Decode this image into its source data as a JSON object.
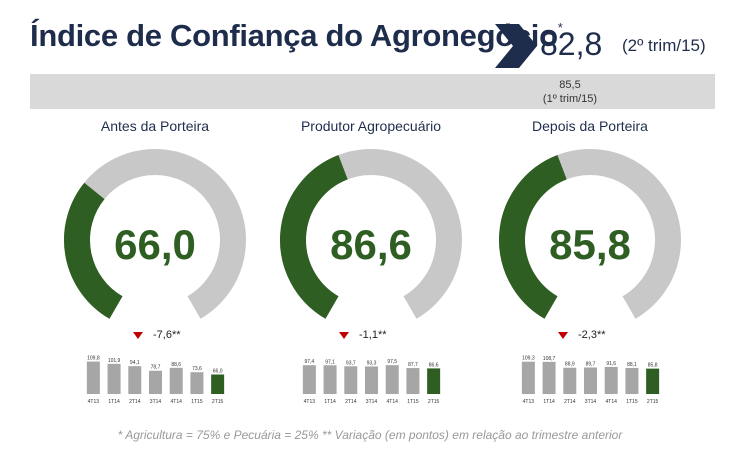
{
  "header": {
    "title": "Índice de Confiança do Agronegócio",
    "title_mark": "*",
    "current_value": "82,8",
    "current_period": "(2º trim/15)",
    "previous_value": "85,5",
    "previous_period": "(1º trim/15)"
  },
  "colors": {
    "title": "#1f2d4d",
    "accent_green": "#2e5e22",
    "gauge_grey": "#c8c8c8",
    "down_red": "#c00000",
    "band": "#d9d9d9"
  },
  "panels": [
    {
      "title": "Antes da Porteira",
      "value": "66,0",
      "delta": "-7,6**",
      "delta_icon": "down-triangle-icon",
      "gauge_fraction": 0.33,
      "chart_data": {
        "type": "bar",
        "categories": [
          "4T13",
          "1T14",
          "2T14",
          "3T14",
          "4T14",
          "1T15",
          "2T15"
        ],
        "values": [
          109.8,
          101.9,
          94.1,
          78.7,
          88.6,
          73.6,
          66.0
        ],
        "labels": [
          "109,8",
          "101,9",
          "94,1",
          "78,7",
          "88,6",
          "73,6",
          "66,0"
        ]
      }
    },
    {
      "title": "Produtor Agropecuário",
      "value": "86,6",
      "delta": "-1,1**",
      "delta_icon": "down-triangle-icon",
      "gauge_fraction": 0.43,
      "chart_data": {
        "type": "bar",
        "categories": [
          "4T13",
          "1T14",
          "2T14",
          "3T14",
          "4T14",
          "1T15",
          "2T15"
        ],
        "values": [
          97.4,
          97.1,
          93.7,
          93.3,
          97.5,
          87.7,
          86.6
        ],
        "labels": [
          "97,4",
          "97,1",
          "93,7",
          "93,3",
          "97,5",
          "87,7",
          "86,6"
        ]
      }
    },
    {
      "title": "Depois da Porteira",
      "value": "85,8",
      "delta": "-2,3**",
      "delta_icon": "down-triangle-icon",
      "gauge_fraction": 0.43,
      "chart_data": {
        "type": "bar",
        "categories": [
          "4T13",
          "1T14",
          "2T14",
          "3T14",
          "4T14",
          "1T15",
          "2T15"
        ],
        "values": [
          109.3,
          108.7,
          88.9,
          89.7,
          91.6,
          88.1,
          85.8
        ],
        "labels": [
          "109,3",
          "108,7",
          "88,9",
          "89,7",
          "91,6",
          "88,1",
          "85,8"
        ]
      }
    }
  ],
  "footnote": "* Agricultura = 75% e Pecuária = 25%   ** Variação (em pontos) em relação ao trimestre anterior"
}
